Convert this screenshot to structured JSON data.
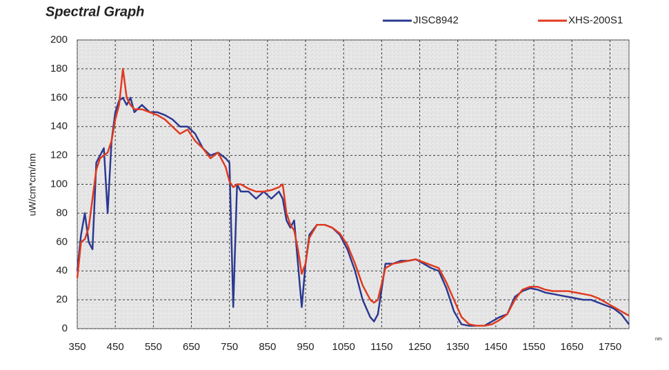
{
  "chart_data": {
    "type": "line",
    "title": "Spectral Graph",
    "y_label": "uW/cm*cm/nm",
    "x_label": "nm",
    "x": [
      350,
      360,
      370,
      380,
      390,
      400,
      410,
      420,
      430,
      440,
      450,
      460,
      470,
      480,
      490,
      500,
      520,
      540,
      560,
      580,
      600,
      620,
      640,
      660,
      680,
      700,
      720,
      740,
      750,
      760,
      770,
      780,
      800,
      820,
      840,
      860,
      880,
      890,
      900,
      910,
      920,
      930,
      940,
      950,
      960,
      980,
      1000,
      1020,
      1040,
      1060,
      1080,
      1100,
      1120,
      1130,
      1140,
      1160,
      1180,
      1200,
      1220,
      1240,
      1260,
      1280,
      1300,
      1320,
      1340,
      1360,
      1380,
      1400,
      1420,
      1440,
      1460,
      1480,
      1500,
      1520,
      1540,
      1560,
      1580,
      1600,
      1620,
      1640,
      1660,
      1680,
      1700,
      1720,
      1740,
      1760,
      1780,
      1800
    ],
    "series": [
      {
        "name": "JISC8942",
        "color": "#2b3990",
        "values": [
          40,
          65,
          80,
          60,
          55,
          115,
          120,
          125,
          80,
          130,
          150,
          158,
          160,
          155,
          160,
          150,
          155,
          150,
          150,
          148,
          145,
          140,
          140,
          135,
          125,
          120,
          122,
          118,
          115,
          15,
          100,
          95,
          95,
          90,
          95,
          90,
          95,
          90,
          75,
          70,
          75,
          45,
          15,
          45,
          65,
          72,
          72,
          70,
          65,
          55,
          40,
          20,
          8,
          5,
          10,
          45,
          45,
          47,
          47,
          48,
          45,
          42,
          40,
          28,
          12,
          3,
          2,
          2,
          2,
          5,
          8,
          10,
          22,
          26,
          28,
          27,
          25,
          24,
          23,
          22,
          21,
          20,
          20,
          18,
          16,
          14,
          10,
          3
        ]
      },
      {
        "name": "XHS-200S1",
        "color": "#e03a1e",
        "values": [
          35,
          60,
          62,
          70,
          90,
          110,
          118,
          120,
          122,
          130,
          145,
          155,
          180,
          160,
          155,
          152,
          152,
          150,
          148,
          145,
          140,
          135,
          138,
          130,
          125,
          118,
          122,
          112,
          102,
          98,
          100,
          100,
          97,
          95,
          95,
          96,
          98,
          100,
          80,
          72,
          68,
          55,
          38,
          45,
          63,
          72,
          72,
          70,
          66,
          58,
          45,
          30,
          20,
          18,
          20,
          42,
          45,
          46,
          47,
          48,
          46,
          44,
          42,
          32,
          20,
          8,
          3,
          2,
          2,
          3,
          6,
          10,
          20,
          27,
          29,
          29,
          27,
          26,
          26,
          26,
          25,
          24,
          23,
          21,
          18,
          15,
          12,
          9
        ]
      }
    ],
    "xlim": [
      350,
      1800
    ],
    "xticks": [
      350,
      450,
      550,
      650,
      750,
      850,
      950,
      1050,
      1150,
      1250,
      1350,
      1450,
      1550,
      1650,
      1750
    ],
    "ylim": [
      0,
      200
    ],
    "yticks": [
      0,
      20,
      40,
      60,
      80,
      100,
      120,
      140,
      160,
      180,
      200
    ],
    "grid": true,
    "legend": "top-right"
  }
}
